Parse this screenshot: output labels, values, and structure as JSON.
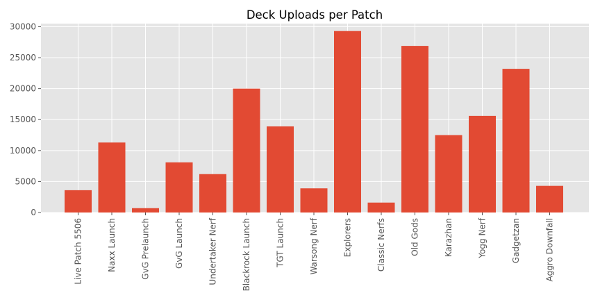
{
  "chart_data": {
    "type": "bar",
    "title": "Deck Uploads per Patch",
    "xlabel": "",
    "ylabel": "",
    "categories": [
      "Live Patch 5506",
      "Naxx Launch",
      "GvG Prelaunch",
      "GvG Launch",
      "Undertaker Nerf",
      "Blackrock Launch",
      "TGT Launch",
      "Warsong Nerf",
      "Explorers",
      "Classic Nerfs",
      "Old Gods",
      "Karazhan",
      "Yogg Nerf",
      "Gadgetzan",
      "Aggro Downfall"
    ],
    "values": [
      3600,
      11300,
      700,
      8100,
      6200,
      20000,
      13900,
      3900,
      29300,
      1600,
      26900,
      12500,
      15600,
      23200,
      4300
    ],
    "ylim": [
      0,
      30500
    ],
    "yticks": [
      0,
      5000,
      10000,
      15000,
      20000,
      25000,
      30000
    ],
    "grid": true,
    "legend": "none",
    "colors": {
      "bar": "#E24A33",
      "plot_background": "#E5E5E5",
      "grid": "#FFFFFF",
      "text": "#555555"
    }
  }
}
